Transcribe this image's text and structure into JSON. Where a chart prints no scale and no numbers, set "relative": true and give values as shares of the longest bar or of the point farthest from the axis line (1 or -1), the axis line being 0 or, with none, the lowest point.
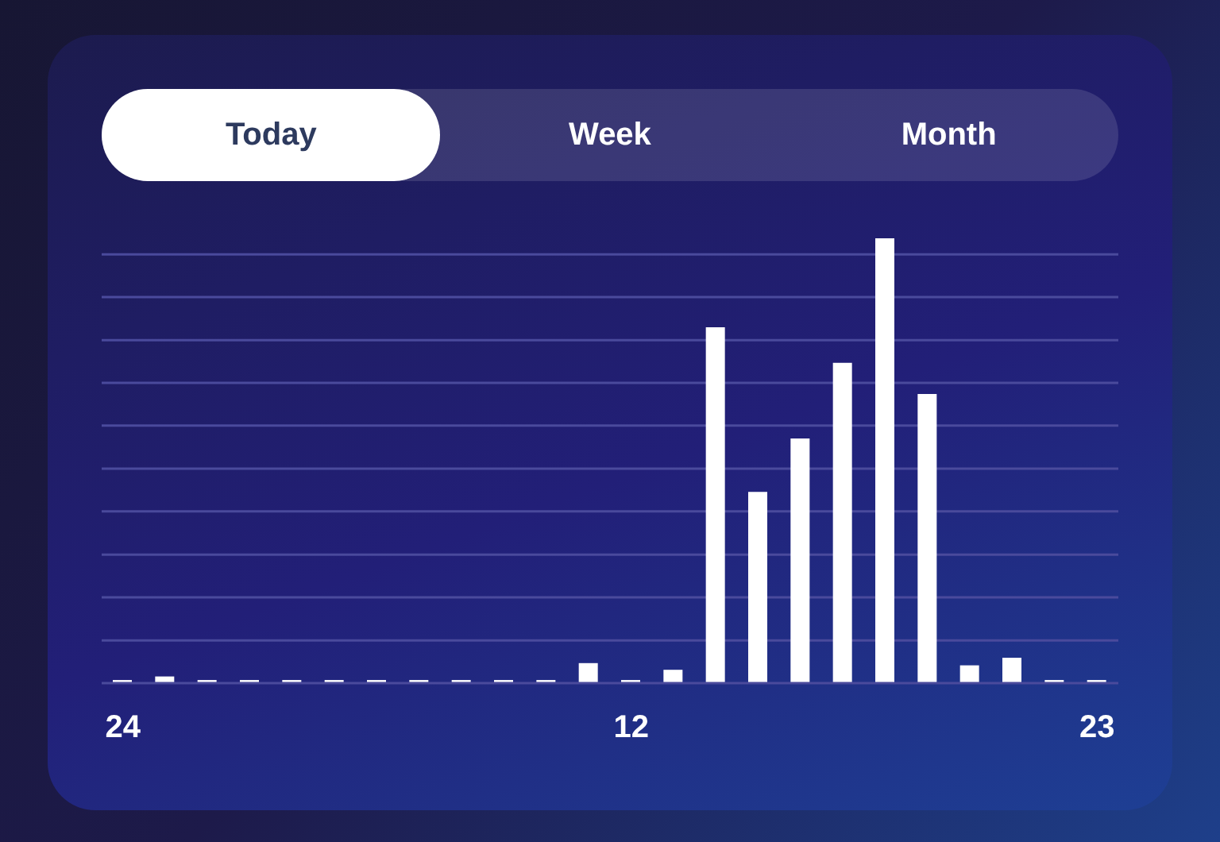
{
  "chart_data": {
    "type": "bar",
    "relative": true,
    "annotations": [
      "Today",
      "Week",
      "Month"
    ],
    "categories": [
      "24",
      null,
      null,
      null,
      null,
      null,
      null,
      null,
      null,
      null,
      null,
      null,
      "12",
      null,
      null,
      null,
      null,
      null,
      null,
      null,
      null,
      null,
      null,
      "23"
    ],
    "values": [
      0.007,
      0.015,
      0.007,
      0.007,
      0.007,
      0.007,
      0.007,
      0.007,
      0.007,
      0.007,
      0.007,
      0.045,
      0.007,
      0.03,
      0.8,
      0.43,
      0.55,
      0.72,
      1,
      0.65,
      0.04,
      0.057,
      0.007,
      0.007
    ],
    "color": "#ffffff",
    "ref_lines": [
      {
        "axis": "y",
        "value": 0.096,
        "color": "#4a4a9c"
      },
      {
        "axis": "y",
        "value": 0.193,
        "color": "#4a4a9c"
      },
      {
        "axis": "y",
        "value": 0.289,
        "color": "#4a4a9c"
      },
      {
        "axis": "y",
        "value": 0.386,
        "color": "#4a4a9c"
      },
      {
        "axis": "y",
        "value": 0.482,
        "color": "#4a4a9c"
      },
      {
        "axis": "y",
        "value": 0.579,
        "color": "#4a4a9c"
      },
      {
        "axis": "y",
        "value": 0.675,
        "color": "#4a4a9c"
      },
      {
        "axis": "y",
        "value": 0.771,
        "color": "#4a4a9c"
      },
      {
        "axis": "y",
        "value": 0.868,
        "color": "#4a4a9c"
      },
      {
        "axis": "y",
        "value": 0.964,
        "color": "#4a4a9c"
      }
    ]
  }
}
